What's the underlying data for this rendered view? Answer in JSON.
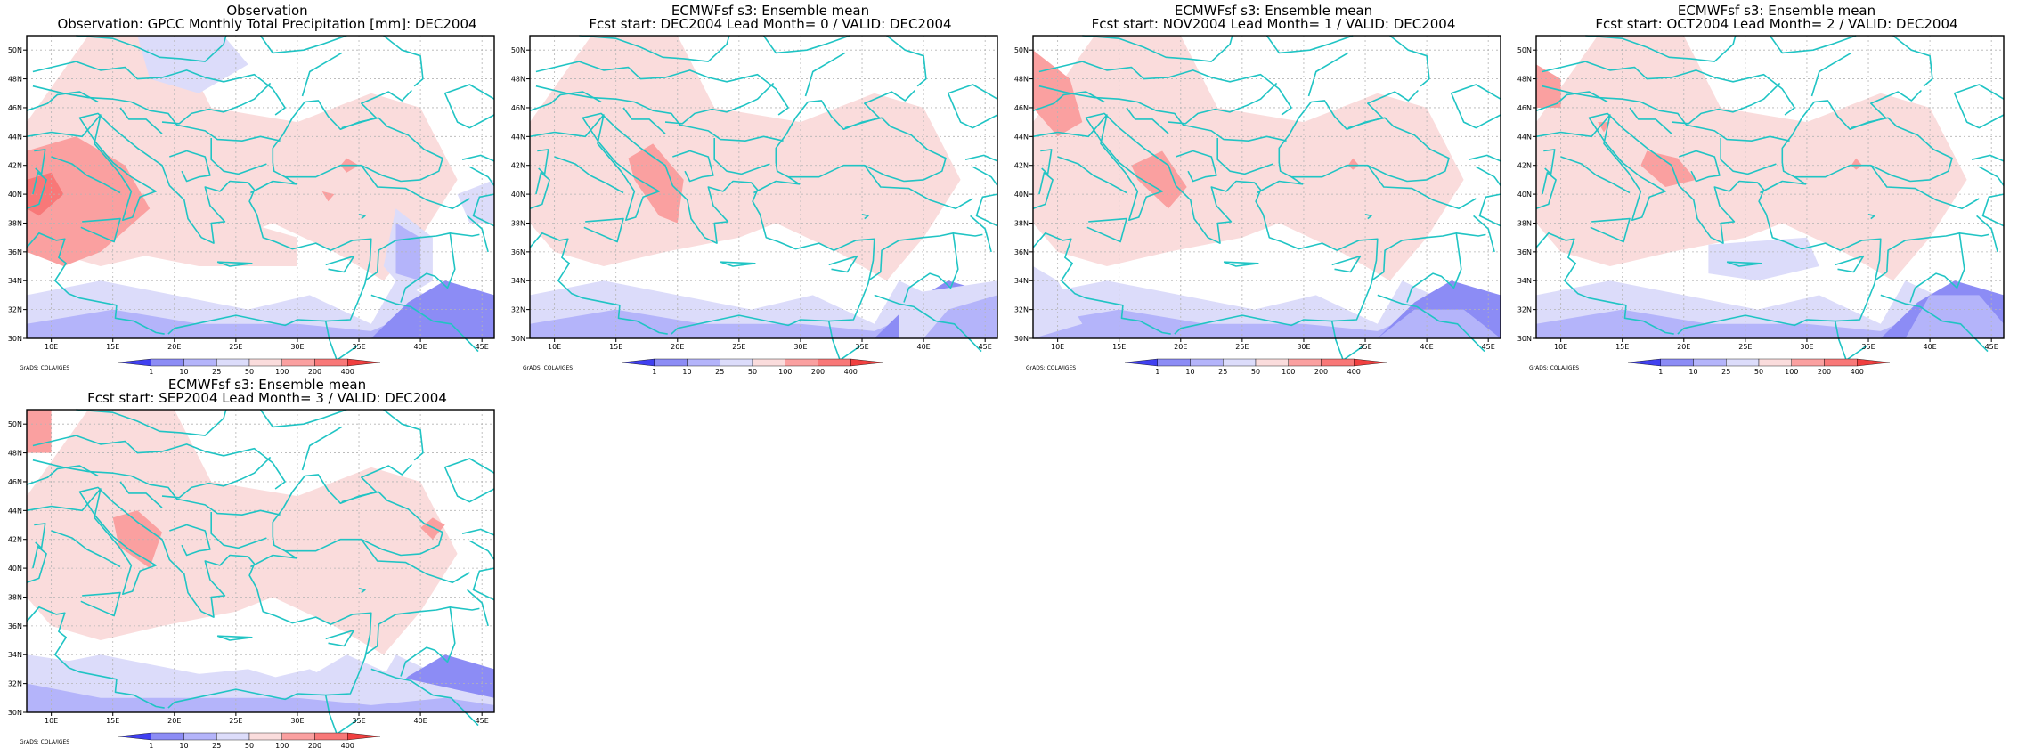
{
  "grads_credit": "GrADS: COLA/IGES",
  "map": {
    "x_ticks": [
      "10E",
      "15E",
      "20E",
      "25E",
      "30E",
      "35E",
      "40E",
      "45E"
    ],
    "y_ticks": [
      "30N",
      "32N",
      "34N",
      "36N",
      "38N",
      "40N",
      "42N",
      "44N",
      "46N",
      "48N",
      "50N"
    ],
    "lon_range": [
      8,
      46
    ],
    "lat_range": [
      30,
      51
    ]
  },
  "colorbar": {
    "labels": [
      "1",
      "10",
      "25",
      "50",
      "100",
      "200",
      "400"
    ],
    "colors": [
      "#4040f0",
      "#8c8cf5",
      "#b4b4fa",
      "#dcdcfa",
      "#fadcdc",
      "#faa0a0",
      "#f87878",
      "#f04040"
    ],
    "coast_color": "#20c4c4"
  },
  "panels": [
    {
      "title1": "Observation",
      "title2": "Observation: GPCC Monthly Total Precipitation [mm]: DEC2004"
    },
    {
      "title1": "ECMWFsf s3: Ensemble mean",
      "title2": "Fcst start: DEC2004   Lead Month= 0 / VALID: DEC2004"
    },
    {
      "title1": "ECMWFsf s3: Ensemble mean",
      "title2": "Fcst start: NOV2004   Lead Month= 1 / VALID: DEC2004"
    },
    {
      "title1": "ECMWFsf s3: Ensemble mean",
      "title2": "Fcst start: OCT2004   Lead Month= 2 / VALID: DEC2004"
    },
    {
      "title1": "ECMWFsf s3: Ensemble mean",
      "title2": "Fcst start: SEP2004   Lead Month= 3 / VALID: DEC2004"
    }
  ]
}
